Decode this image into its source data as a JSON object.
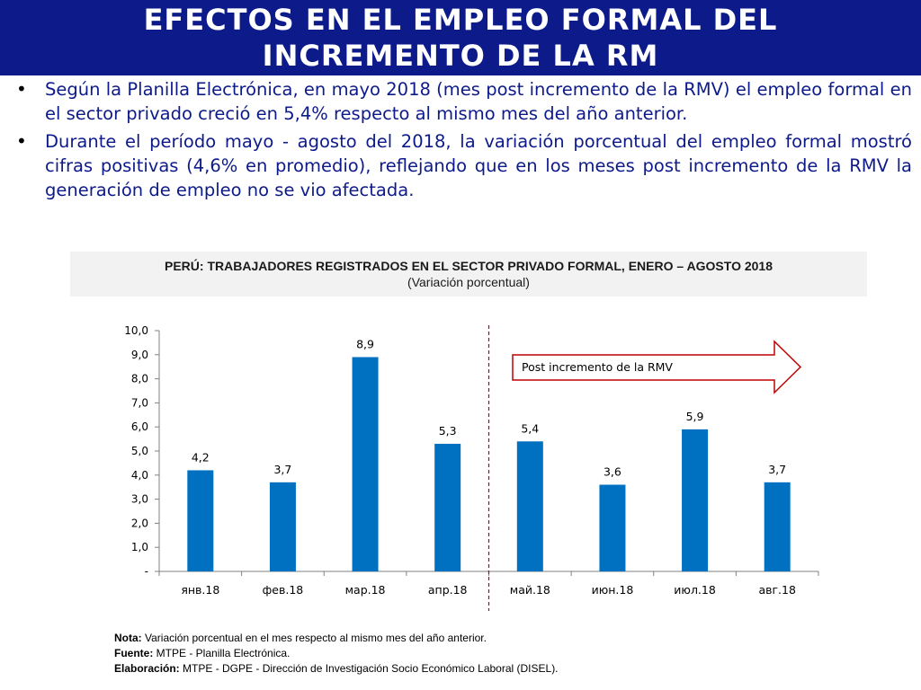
{
  "header": {
    "title_line1": "EFECTOS EN EL EMPLEO FORMAL DEL",
    "title_line2": "INCREMENTO DE LA RM"
  },
  "bullets": [
    "Según la Planilla Electrónica, en mayo 2018 (mes post incremento de la RMV) el empleo formal en el sector privado creció en 5,4% respecto al mismo mes del año anterior.",
    "Durante el período mayo - agosto del 2018, la variación porcentual del empleo formal mostró cifras positivas (4,6% en promedio), reflejando que en los meses post incremento de la RMV la generación de empleo no se vio afectada."
  ],
  "chart_data": {
    "type": "bar",
    "title": "PERÚ: TRABAJADORES REGISTRADOS EN EL SECTOR PRIVADO FORMAL, ENERO – AGOSTO 2018",
    "subtitle": "(Variación porcentual)",
    "categories": [
      "янв.18",
      "фев.18",
      "мар.18",
      "апр.18",
      "май.18",
      "июн.18",
      "июл.18",
      "авг.18"
    ],
    "values": [
      4.2,
      3.7,
      8.9,
      5.3,
      5.4,
      3.6,
      5.9,
      3.7
    ],
    "value_labels": [
      "4,2",
      "3,7",
      "8,9",
      "5,3",
      "5,4",
      "3,6",
      "5,9",
      "3,7"
    ],
    "ylim": [
      0,
      10
    ],
    "yticks": [
      0,
      1,
      2,
      3,
      4,
      5,
      6,
      7,
      8,
      9,
      10
    ],
    "ytick_labels": [
      "-",
      "1,0",
      "2,0",
      "3,0",
      "4,0",
      "5,0",
      "6,0",
      "7,0",
      "8,0",
      "9,0",
      "10,0"
    ],
    "grid": false,
    "bar_color": "#0070c0",
    "divider_after_category": "апр.18",
    "divider_color": "#c00000",
    "annotation": "Post incremento de la RMV",
    "arrow_color": "#c00000"
  },
  "notes": {
    "nota_label": "Nota:",
    "nota_text": " Variación porcentual en el mes respecto al mismo mes del año anterior.",
    "fuente_label": "Fuente:",
    "fuente_text": " MTPE - Planilla Electrónica.",
    "elaboracion_label": "Elaboración:",
    "elaboracion_text": " MTPE - DGPE - Dirección de Investigación Socio Económico Laboral (DISEL)."
  }
}
